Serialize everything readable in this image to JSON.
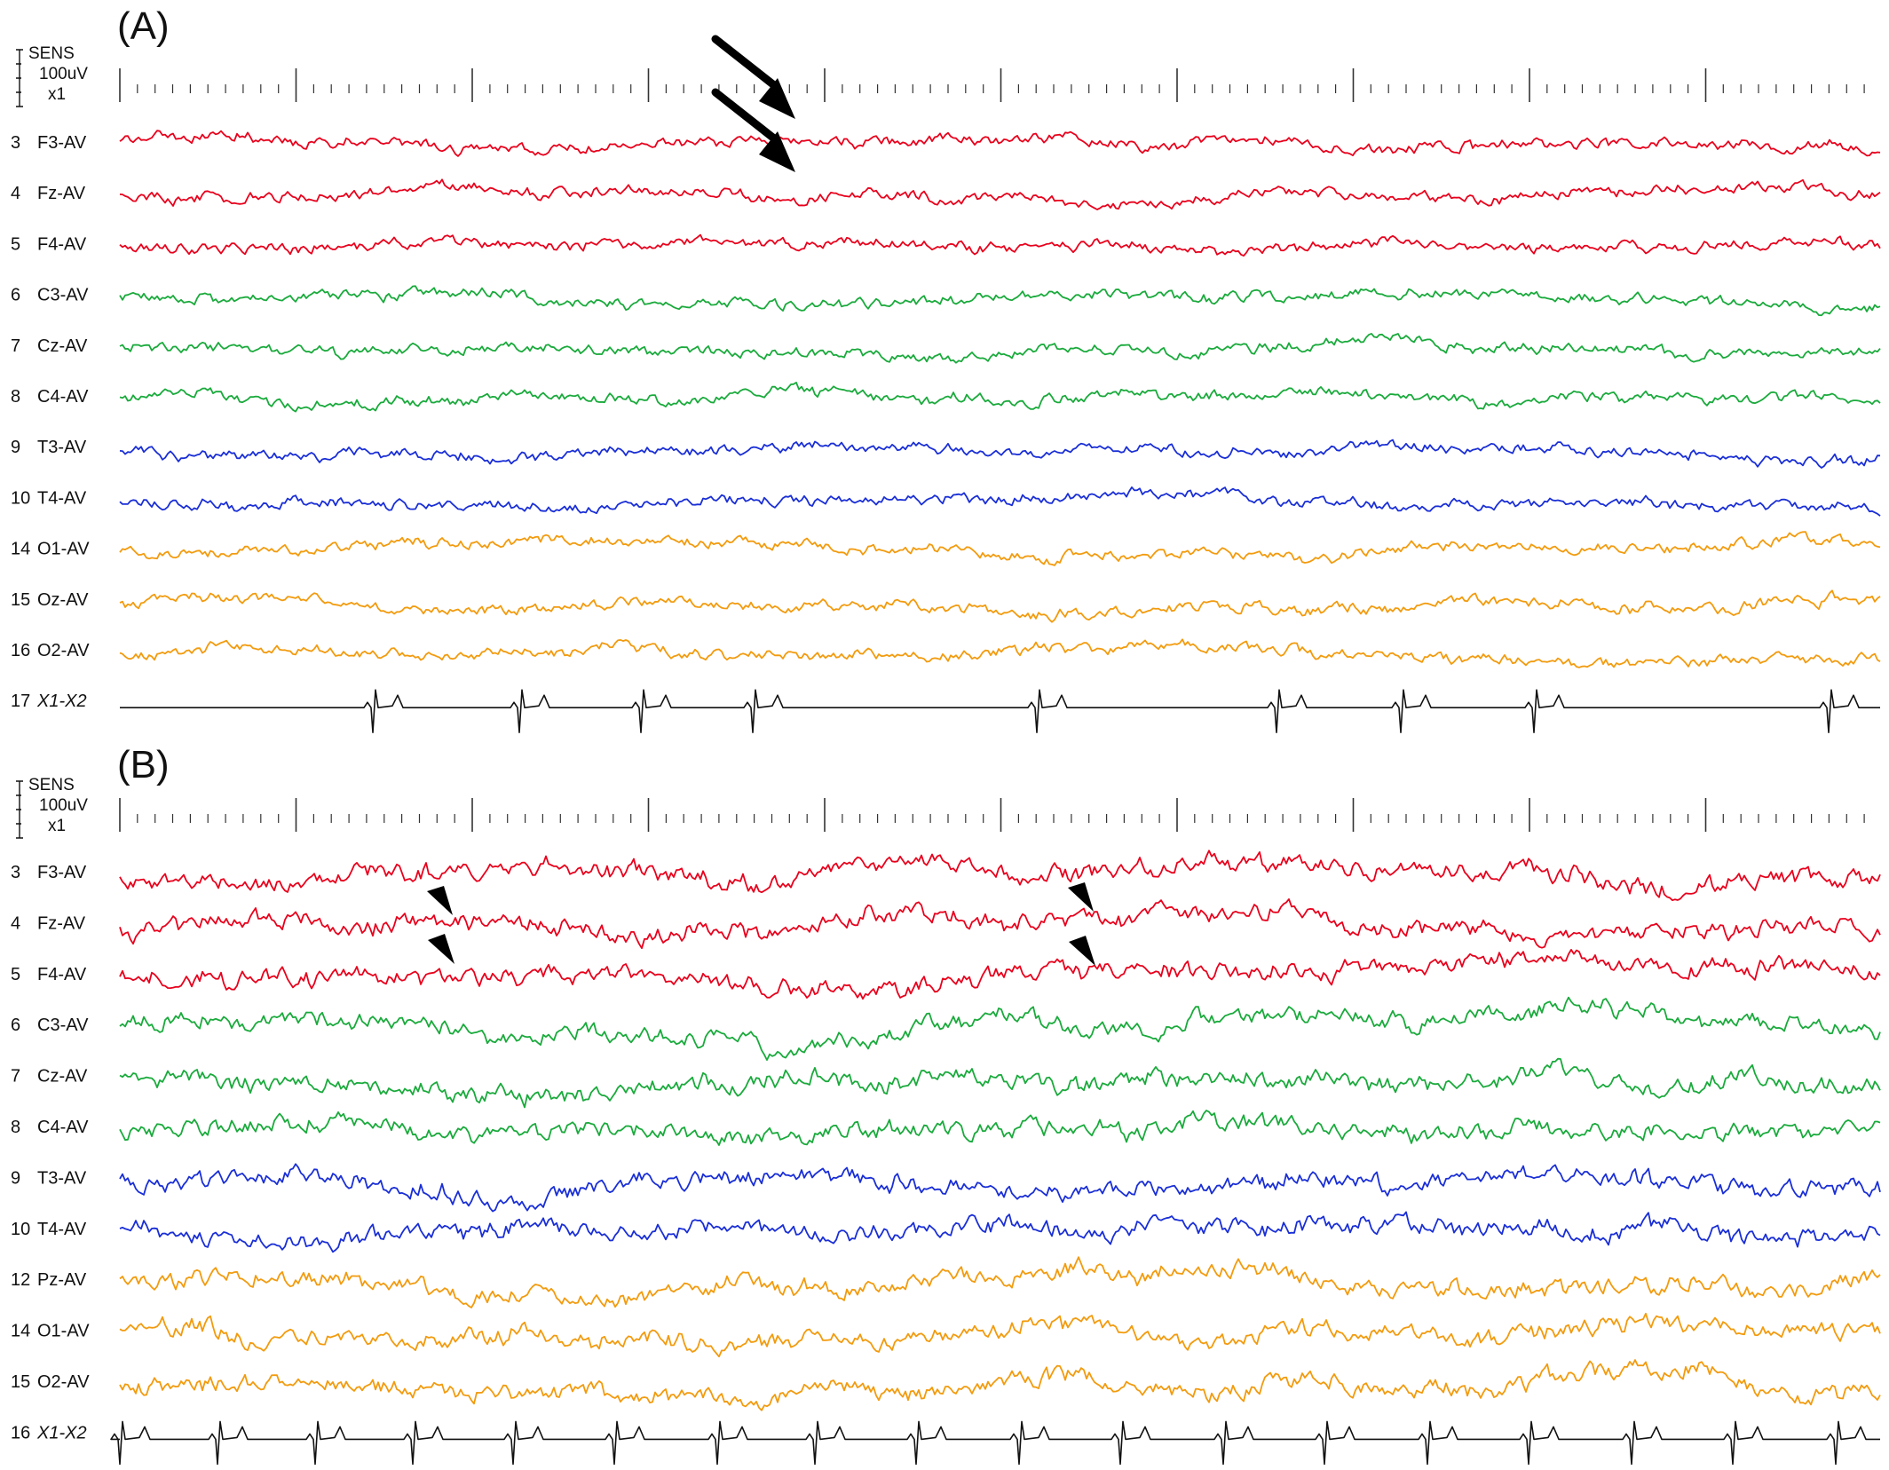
{
  "panels": [
    {
      "id": "A",
      "label": "(A)",
      "sens": {
        "line1": "SENS",
        "line2": "100uV",
        "line3": "x1"
      },
      "channels": [
        {
          "num": "3",
          "name": "F3-AV",
          "color": "#e8001c",
          "italic": false
        },
        {
          "num": "4",
          "name": "Fz-AV",
          "color": "#e8001c",
          "italic": false
        },
        {
          "num": "5",
          "name": "F4-AV",
          "color": "#e8001c",
          "italic": false
        },
        {
          "num": "6",
          "name": "C3-AV",
          "color": "#1aaa3c",
          "italic": false
        },
        {
          "num": "7",
          "name": "Cz-AV",
          "color": "#1aaa3c",
          "italic": false
        },
        {
          "num": "8",
          "name": "C4-AV",
          "color": "#1aaa3c",
          "italic": false
        },
        {
          "num": "9",
          "name": "T3-AV",
          "color": "#1a2fd6",
          "italic": false
        },
        {
          "num": "10",
          "name": "T4-AV",
          "color": "#1a2fd6",
          "italic": false
        },
        {
          "num": "14",
          "name": "O1-AV",
          "color": "#f29b0e",
          "italic": false
        },
        {
          "num": "15",
          "name": "Oz-AV",
          "color": "#f29b0e",
          "italic": false
        },
        {
          "num": "16",
          "name": "O2-AV",
          "color": "#f29b0e",
          "italic": false
        },
        {
          "num": "17",
          "name": "X1-X2",
          "color": "#111111",
          "italic": true,
          "ecg": true
        }
      ]
    },
    {
      "id": "B",
      "label": "(B)",
      "sens": {
        "line1": "SENS",
        "line2": "100uV",
        "line3": "x1"
      },
      "channels": [
        {
          "num": "3",
          "name": "F3-AV",
          "color": "#e8001c",
          "italic": false
        },
        {
          "num": "4",
          "name": "Fz-AV",
          "color": "#e8001c",
          "italic": false
        },
        {
          "num": "5",
          "name": "F4-AV",
          "color": "#e8001c",
          "italic": false
        },
        {
          "num": "6",
          "name": "C3-AV",
          "color": "#1aaa3c",
          "italic": false
        },
        {
          "num": "7",
          "name": "Cz-AV",
          "color": "#1aaa3c",
          "italic": false
        },
        {
          "num": "8",
          "name": "C4-AV",
          "color": "#1aaa3c",
          "italic": false
        },
        {
          "num": "9",
          "name": "T3-AV",
          "color": "#1a2fd6",
          "italic": false
        },
        {
          "num": "10",
          "name": "T4-AV",
          "color": "#1a2fd6",
          "italic": false
        },
        {
          "num": "12",
          "name": "Pz-AV",
          "color": "#f29b0e",
          "italic": false
        },
        {
          "num": "14",
          "name": "O1-AV",
          "color": "#f29b0e",
          "italic": false
        },
        {
          "num": "15",
          "name": "O2-AV",
          "color": "#f29b0e",
          "italic": false
        },
        {
          "num": "16",
          "name": "X1-X2",
          "color": "#111111",
          "italic": true,
          "ecg": true
        }
      ]
    }
  ],
  "annotations": {
    "arrows": "black arrows marking spikes in frontal channels (panel A)",
    "arrowheads": "black arrowheads marking sharp waves in frontal channels (panel B)"
  }
}
